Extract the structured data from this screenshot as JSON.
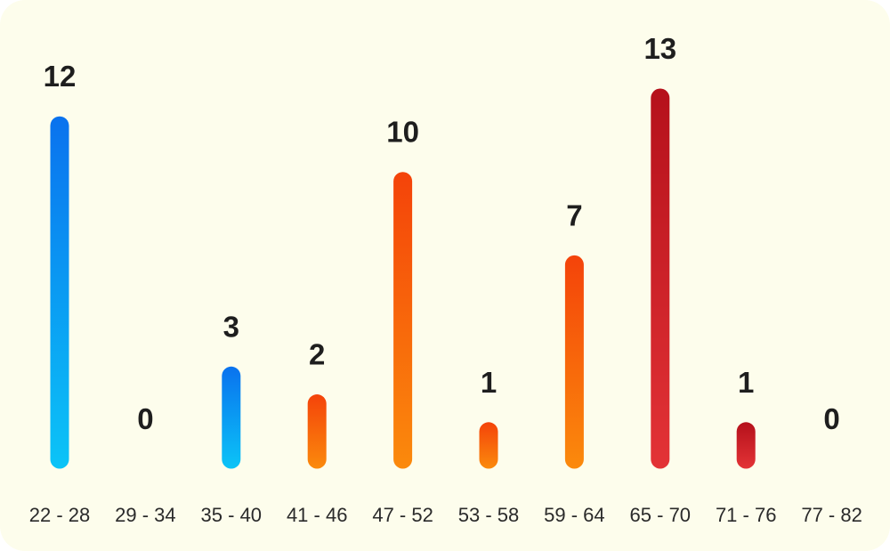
{
  "chart_data": {
    "type": "bar",
    "categories": [
      "22 - 28",
      "29 - 34",
      "35 - 40",
      "41 - 46",
      "47 - 52",
      "53 - 58",
      "59 - 64",
      "65 - 70",
      "71 - 76",
      "77 - 82"
    ],
    "values": [
      12,
      0,
      3,
      2,
      10,
      1,
      7,
      13,
      1,
      0
    ],
    "ylim": [
      0,
      13
    ],
    "grid": false,
    "legend": "none",
    "bar_colors": [
      [
        "#0a72ee",
        "#0bc4f7"
      ],
      [
        "#0a72ee",
        "#0bc4f7"
      ],
      [
        "#0a72ee",
        "#0bc4f7"
      ],
      [
        "#f4430a",
        "#fb8a0c"
      ],
      [
        "#f4430a",
        "#fb8a0c"
      ],
      [
        "#f4430a",
        "#fb8a0c"
      ],
      [
        "#f4430a",
        "#fb8a0c"
      ],
      [
        "#b5111b",
        "#e33336"
      ],
      [
        "#b5111b",
        "#e33336"
      ],
      [
        "#b5111b",
        "#e33336"
      ]
    ],
    "background_color": "#fdfdec"
  }
}
